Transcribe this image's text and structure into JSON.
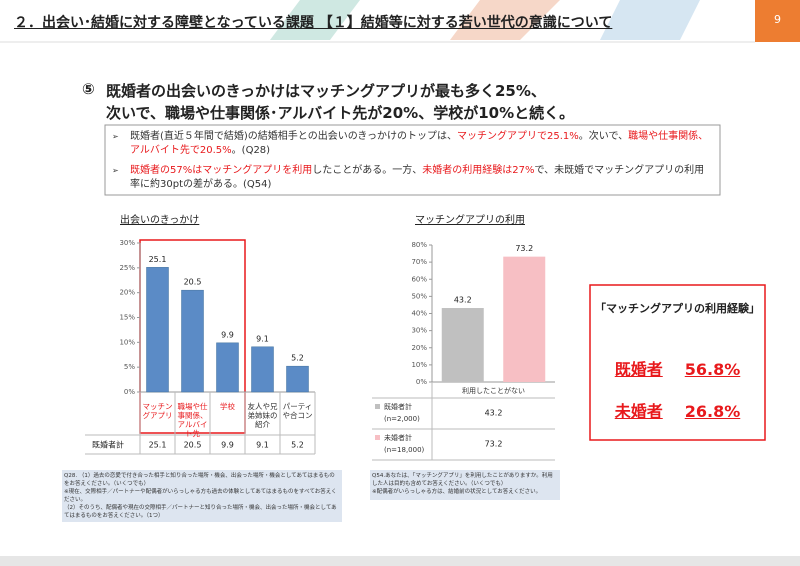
{
  "header": {
    "title": "２．出会い･結婚に対する障壁となっている課題 【１】結婚等に対する若い世代の意識について",
    "page": "9"
  },
  "headline": {
    "number": "⑤",
    "lines": [
      "既婚者の出会いのきっかけはマッチングアプリが最も多く25%、",
      "次いで、職場や仕事関係･アルバイト先が20%、学校が10%と続く。"
    ]
  },
  "bullets": [
    [
      {
        "text": "既婚者(直近５年間で結婚)の結婚相手との出会いのきっかけのトップは、"
      },
      {
        "text": "マッチングアプリで25.1%",
        "color": "#e8191c"
      },
      {
        "text": "。次いで、"
      },
      {
        "text": "職場や仕事関係、アルバイト先で20.5%",
        "color": "#e8191c"
      },
      {
        "text": "。(Q28)"
      }
    ],
    [
      {
        "text": "既婚者の57%はマッチングアプリを利用",
        "color": "#e8191c"
      },
      {
        "text": "したことがある。一方、"
      },
      {
        "text": "未婚者の利用経験は27%",
        "color": "#e8191c"
      },
      {
        "text": "で、未既婚でマッチングアプリの利用率に約30ptの差がある。(Q54)"
      }
    ]
  ],
  "chart_data": [
    {
      "type": "bar",
      "title": "出会いのきっかけ",
      "categories": [
        "マッチングアプリ",
        "職場や仕事関係、アルバイト先",
        "学校",
        "友人や兄弟姉妹の紹介",
        "パーティや合コン"
      ],
      "category_colors": [
        "#e8191c",
        "#e8191c",
        "#e8191c",
        "#333333",
        "#333333"
      ],
      "values": [
        25.1,
        20.5,
        9.9,
        9.1,
        5.2
      ],
      "color": "#5b8bc6",
      "row_label": "既婚者計",
      "ylim": [
        0,
        30
      ],
      "yticks": [
        {
          "value": 0,
          "label": "0%"
        },
        {
          "value": 5,
          "label": "5%"
        },
        {
          "value": 10,
          "label": "10%"
        },
        {
          "value": 15,
          "label": "15%"
        },
        {
          "value": 20,
          "label": "20%"
        },
        {
          "value": 25,
          "label": "25%"
        },
        {
          "value": 30,
          "label": "30%"
        }
      ],
      "grid": false
    },
    {
      "type": "bar",
      "title": "マッチングアプリの利用",
      "categories": [
        "利用したことがない"
      ],
      "series": [
        {
          "name": "既婚者計",
          "note": "(n=2,000)",
          "color": "#c0c0c0",
          "values": [
            43.2
          ]
        },
        {
          "name": "未婚者計",
          "note": "(n=18,000)",
          "color": "#f7bfc4",
          "values": [
            73.2
          ]
        }
      ],
      "ylim": [
        0,
        80
      ],
      "yticks": [
        {
          "value": 0,
          "label": "0%"
        },
        {
          "value": 10,
          "label": "10%"
        },
        {
          "value": 20,
          "label": "20%"
        },
        {
          "value": 30,
          "label": "30%"
        },
        {
          "value": 40,
          "label": "40%"
        },
        {
          "value": 50,
          "label": "50%"
        },
        {
          "value": 60,
          "label": "60%"
        },
        {
          "value": 70,
          "label": "70%"
        },
        {
          "value": 80,
          "label": "80%"
        }
      ],
      "grid": false
    }
  ],
  "summary": {
    "title": "「マッチングアプリの利用経験」",
    "rows": [
      {
        "label": "既婚者",
        "value": "56.8%"
      },
      {
        "label": "未婚者",
        "value": "26.8%"
      }
    ]
  },
  "notes": [
    [
      "Q28. （1）過去の恋愛で付き合った相手と知り合った場所・機会、出会った場所・機会としてあてはまるものをお答えください。（いくつでも）",
      "※現在、交際相手／パートナーや配偶者がいらっしゃる方も過去の体験としてあてはまるものをすべてお答えください。",
      "（2）そのうち、配偶者や現在の交際相手／パートナーと知り合った場所・機会、出会った場所・機会としてあてはまるものをお答えください。（1つ）"
    ],
    [
      "Q54.あなたは、「マッチングアプリ」を利用したことがありますか。利用した人は目的も含めてお答えください。（いくつでも）",
      "※配偶者がいらっしゃる方は、結婚前の状況としてお答えください。"
    ]
  ]
}
